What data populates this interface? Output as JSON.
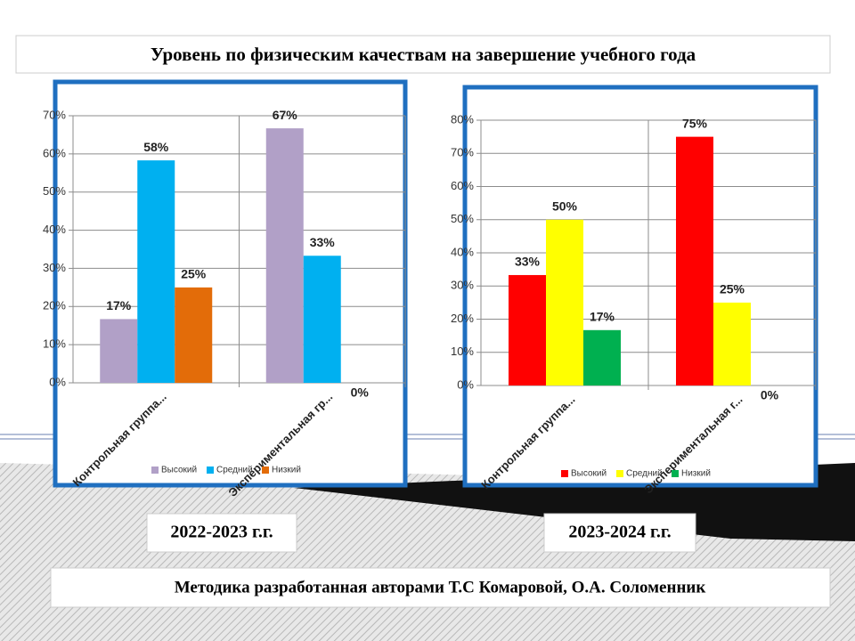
{
  "header": {
    "title": "Уровень по физическим качествам на завершение учебного года"
  },
  "chart_data": [
    {
      "type": "bar",
      "categories": [
        "Контрольная группа...",
        "Экспериментальная гр..."
      ],
      "series": [
        {
          "name": "Высокий",
          "color": "#b1a0c7",
          "values": [
            16.7,
            66.7
          ],
          "value_labels": [
            "17%",
            "67%"
          ]
        },
        {
          "name": "Средний",
          "color": "#00b0f0",
          "values": [
            58.3,
            33.3
          ],
          "value_labels": [
            "58%",
            "33%"
          ]
        },
        {
          "name": "Низкий",
          "color": "#e36c09",
          "values": [
            25,
            0
          ],
          "value_labels": [
            "25%",
            "0%"
          ]
        }
      ],
      "ylim": [
        0,
        70
      ],
      "yticks": [
        {
          "value": 0,
          "label": "0%"
        },
        {
          "value": 10,
          "label": "10%"
        },
        {
          "value": 20,
          "label": "20%"
        },
        {
          "value": 30,
          "label": "30%"
        },
        {
          "value": 40,
          "label": "40%"
        },
        {
          "value": 50,
          "label": "50%"
        },
        {
          "value": 60,
          "label": "60%"
        },
        {
          "value": 70,
          "label": "70%"
        }
      ],
      "grid": true,
      "legend": "bottom"
    },
    {
      "type": "bar",
      "categories": [
        "Контрольная группа...",
        "Экспериментальная г..."
      ],
      "series": [
        {
          "name": "Высокий",
          "color": "#ff0000",
          "values": [
            33.3,
            75
          ],
          "value_labels": [
            "33%",
            "75%"
          ]
        },
        {
          "name": "Средний",
          "color": "#ffff00",
          "values": [
            50,
            25
          ],
          "value_labels": [
            "50%",
            "25%"
          ]
        },
        {
          "name": "Низкий",
          "color": "#00b050",
          "values": [
            16.7,
            0
          ],
          "value_labels": [
            "17%",
            "0%"
          ]
        }
      ],
      "ylim": [
        0,
        80
      ],
      "yticks": [
        {
          "value": 0,
          "label": "0%"
        },
        {
          "value": 10,
          "label": "10%"
        },
        {
          "value": 20,
          "label": "20%"
        },
        {
          "value": 30,
          "label": "30%"
        },
        {
          "value": 40,
          "label": "40%"
        },
        {
          "value": 50,
          "label": "50%"
        },
        {
          "value": 60,
          "label": "60%"
        },
        {
          "value": 70,
          "label": "70%"
        },
        {
          "value": 80,
          "label": "80%"
        }
      ],
      "grid": true,
      "legend": "bottom"
    }
  ],
  "captions": [
    "2022-2023 г.г.",
    "2023-2024 г.г."
  ],
  "footer": "Методика разработанная авторами Т.С Комаровой, О.А. Соломенник"
}
